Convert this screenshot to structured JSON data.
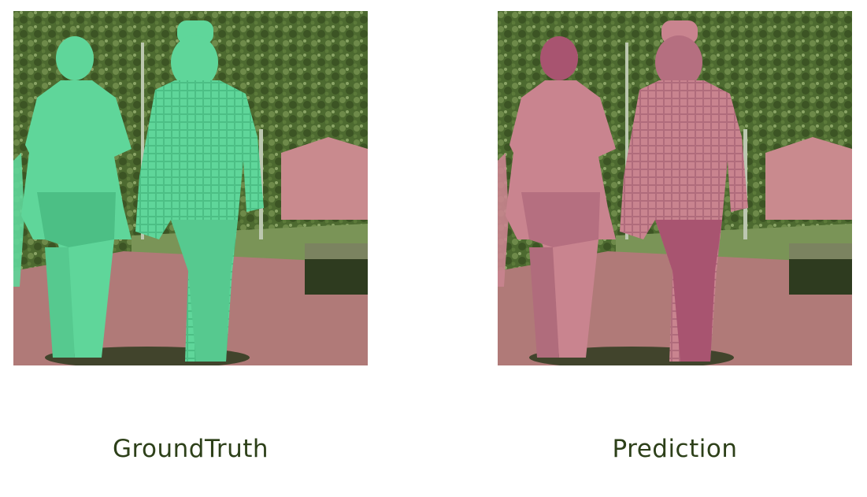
{
  "figure": {
    "left_caption": "GroundTruth",
    "right_caption": "Prediction"
  },
  "colors": {
    "background_tint": "#556b3a",
    "foliage_dark": "#3c5424",
    "foliage_light": "#6e8a4a",
    "path_pink": "#b07a78",
    "wall_pink": "#c98a8e",
    "grass": "#7a9457",
    "bench": "#2e3b1f",
    "gt_person_mask": "#5fd69a",
    "pred_person_mask_light": "#c9848f",
    "pred_person_mask_dark": "#a85470",
    "caption_text": "#2d4019"
  }
}
